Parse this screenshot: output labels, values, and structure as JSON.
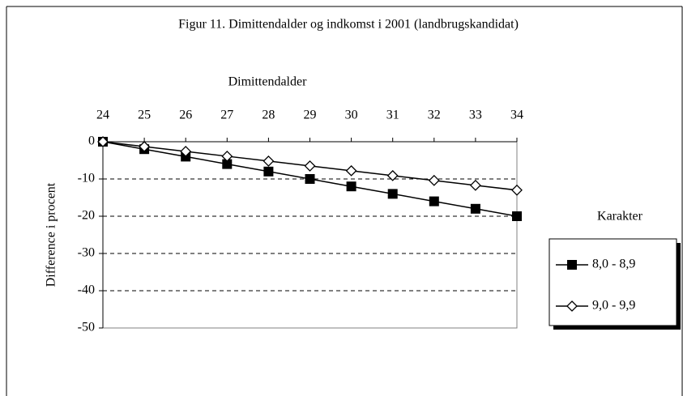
{
  "chart_data": {
    "type": "line",
    "title": "Figur 11. Dimittendalder og indkomst i 2001 (landbrugskandidat)",
    "x_label": "Dimittendalder",
    "y_label": "Difference i procent",
    "x": [
      24,
      25,
      26,
      27,
      28,
      29,
      30,
      31,
      32,
      33,
      34
    ],
    "xlim": [
      24,
      34
    ],
    "xticks": [
      24,
      25,
      26,
      27,
      28,
      29,
      30,
      31,
      32,
      33,
      34
    ],
    "ylim": [
      -50,
      0
    ],
    "yticks": [
      0,
      -10,
      -20,
      -30,
      -40,
      -50
    ],
    "grid": true,
    "legend_title": "Karakter",
    "legend_position": "right",
    "series": [
      {
        "name": "8,0 - 8,9",
        "color": "#000000",
        "marker": "square",
        "values": [
          0,
          -2,
          -4,
          -6,
          -8,
          -10,
          -12,
          -14,
          -16,
          -18,
          -20
        ]
      },
      {
        "name": "9,0 - 9,9",
        "color": "#000000",
        "marker": "diamond",
        "values": [
          0,
          -1.3,
          -2.6,
          -3.9,
          -5.2,
          -6.5,
          -7.8,
          -9.1,
          -10.4,
          -11.7,
          -13
        ]
      }
    ]
  }
}
